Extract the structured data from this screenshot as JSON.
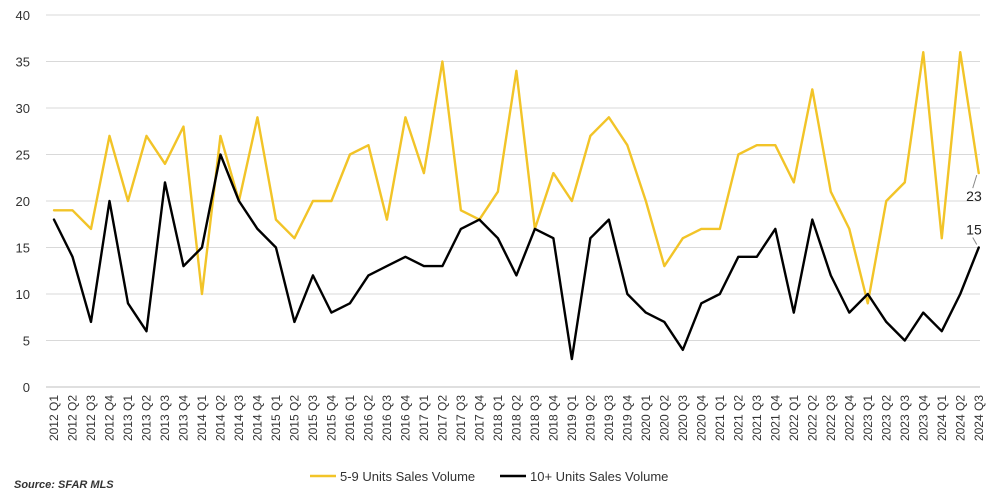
{
  "chart_data": {
    "type": "line",
    "title": "",
    "xlabel": "",
    "ylabel": "",
    "ylim": [
      0,
      40
    ],
    "y_ticks": [
      0,
      5,
      10,
      15,
      20,
      25,
      30,
      35,
      40
    ],
    "grid": "horizontal",
    "legend_position": "bottom",
    "categories": [
      "2012 Q1",
      "2012 Q2",
      "2012 Q3",
      "2012 Q4",
      "2013 Q1",
      "2013 Q2",
      "2013 Q3",
      "2013 Q4",
      "2014 Q1",
      "2014 Q2",
      "2014 Q3",
      "2014 Q4",
      "2015 Q1",
      "2015 Q2",
      "2015 Q3",
      "2015 Q4",
      "2016 Q1",
      "2016 Q2",
      "2016 Q3",
      "2016 Q4",
      "2017 Q1",
      "2017 Q2",
      "2017 Q3",
      "2017 Q4",
      "2018 Q1",
      "2018 Q2",
      "2018 Q3",
      "2018 Q4",
      "2019 Q1",
      "2019 Q2",
      "2019 Q3",
      "2019 Q4",
      "2020 Q1",
      "2020 Q2",
      "2020 Q3",
      "2020 Q4",
      "2021 Q1",
      "2021 Q2",
      "2021 Q3",
      "2021 Q4",
      "2022 Q1",
      "2022 Q2",
      "2022 Q3",
      "2022 Q4",
      "2023 Q1",
      "2023 Q2",
      "2023 Q3",
      "2023 Q4",
      "2024 Q1",
      "2024 Q2",
      "2024 Q3"
    ],
    "series": [
      {
        "name": "5-9 Units Sales Volume",
        "color": "#F2C428",
        "values": [
          19,
          19,
          17,
          27,
          20,
          27,
          24,
          28,
          10,
          27,
          20,
          29,
          18,
          16,
          20,
          20,
          25,
          26,
          18,
          29,
          23,
          35,
          19,
          18,
          21,
          34,
          17,
          23,
          20,
          27,
          29,
          26,
          20,
          13,
          16,
          17,
          17,
          25,
          26,
          26,
          22,
          32,
          21,
          17,
          9,
          20,
          22,
          36,
          16,
          36,
          23
        ],
        "end_label": "23"
      },
      {
        "name": "10+ Units Sales Volume",
        "color": "#000000",
        "values": [
          18,
          14,
          7,
          20,
          9,
          6,
          22,
          13,
          15,
          25,
          20,
          17,
          15,
          7,
          12,
          8,
          9,
          12,
          13,
          14,
          13,
          13,
          17,
          18,
          16,
          12,
          17,
          16,
          3,
          16,
          18,
          10,
          8,
          7,
          4,
          9,
          10,
          14,
          14,
          17,
          8,
          18,
          12,
          8,
          10,
          7,
          5,
          8,
          6,
          10,
          15
        ],
        "end_label": "15"
      }
    ],
    "source": "Source: SFAR MLS"
  }
}
